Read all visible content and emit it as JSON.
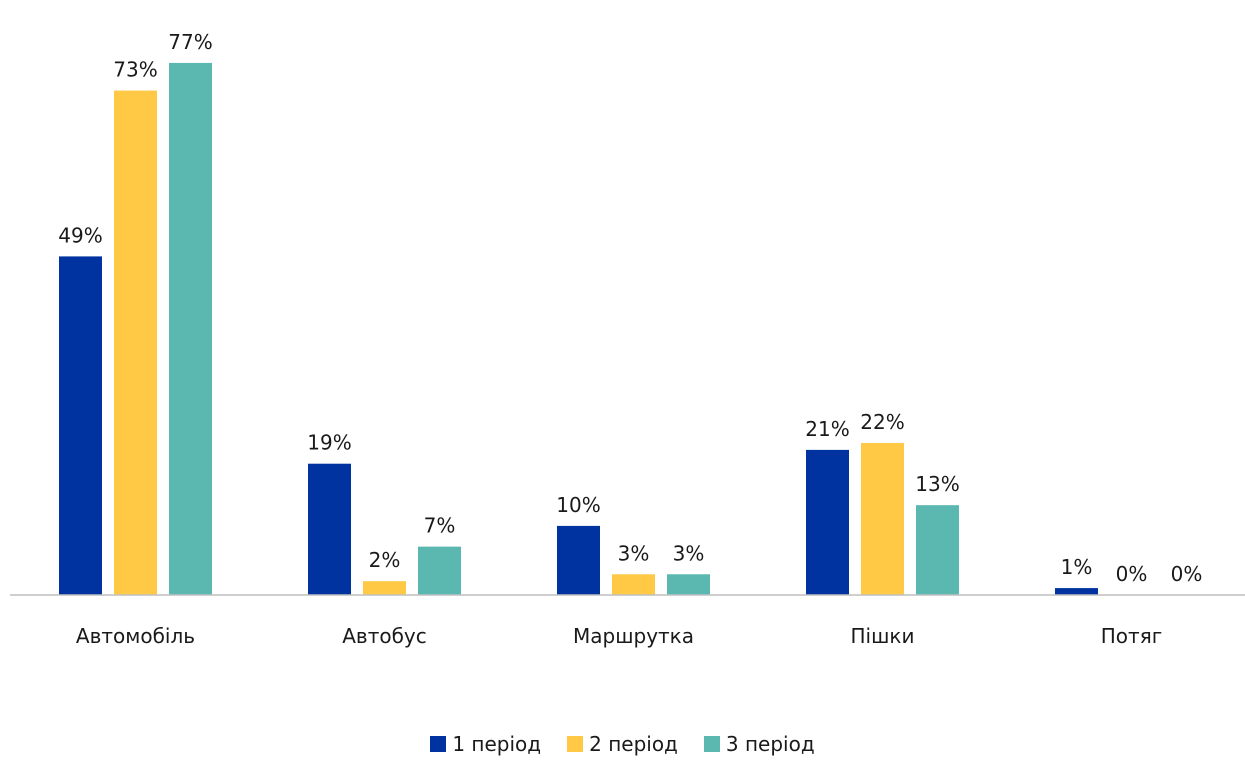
{
  "chart_data": {
    "type": "bar",
    "categories": [
      "Автомобіль",
      "Автобус",
      "Маршрутка",
      "Пішки",
      "Потяг"
    ],
    "series": [
      {
        "name": "1 період",
        "values": [
          49,
          19,
          10,
          21,
          1
        ],
        "labels": [
          "49%",
          "19%",
          "10%",
          "21%",
          "1%"
        ],
        "color": "#0033A0"
      },
      {
        "name": "2 період",
        "values": [
          73,
          2,
          3,
          22,
          0
        ],
        "labels": [
          "73%",
          "2%",
          "3%",
          "22%",
          "0%"
        ],
        "color": "#FFC845"
      },
      {
        "name": "3 період",
        "values": [
          77,
          7,
          3,
          13,
          0
        ],
        "labels": [
          "77%",
          "7%",
          "3%",
          "13%",
          "0%"
        ],
        "color": "#5BB8B0"
      }
    ],
    "unit": "%",
    "ylim": [
      0,
      80
    ],
    "grid": false,
    "legend_position": "bottom-center",
    "baseline_color": "#bfbfbf"
  }
}
